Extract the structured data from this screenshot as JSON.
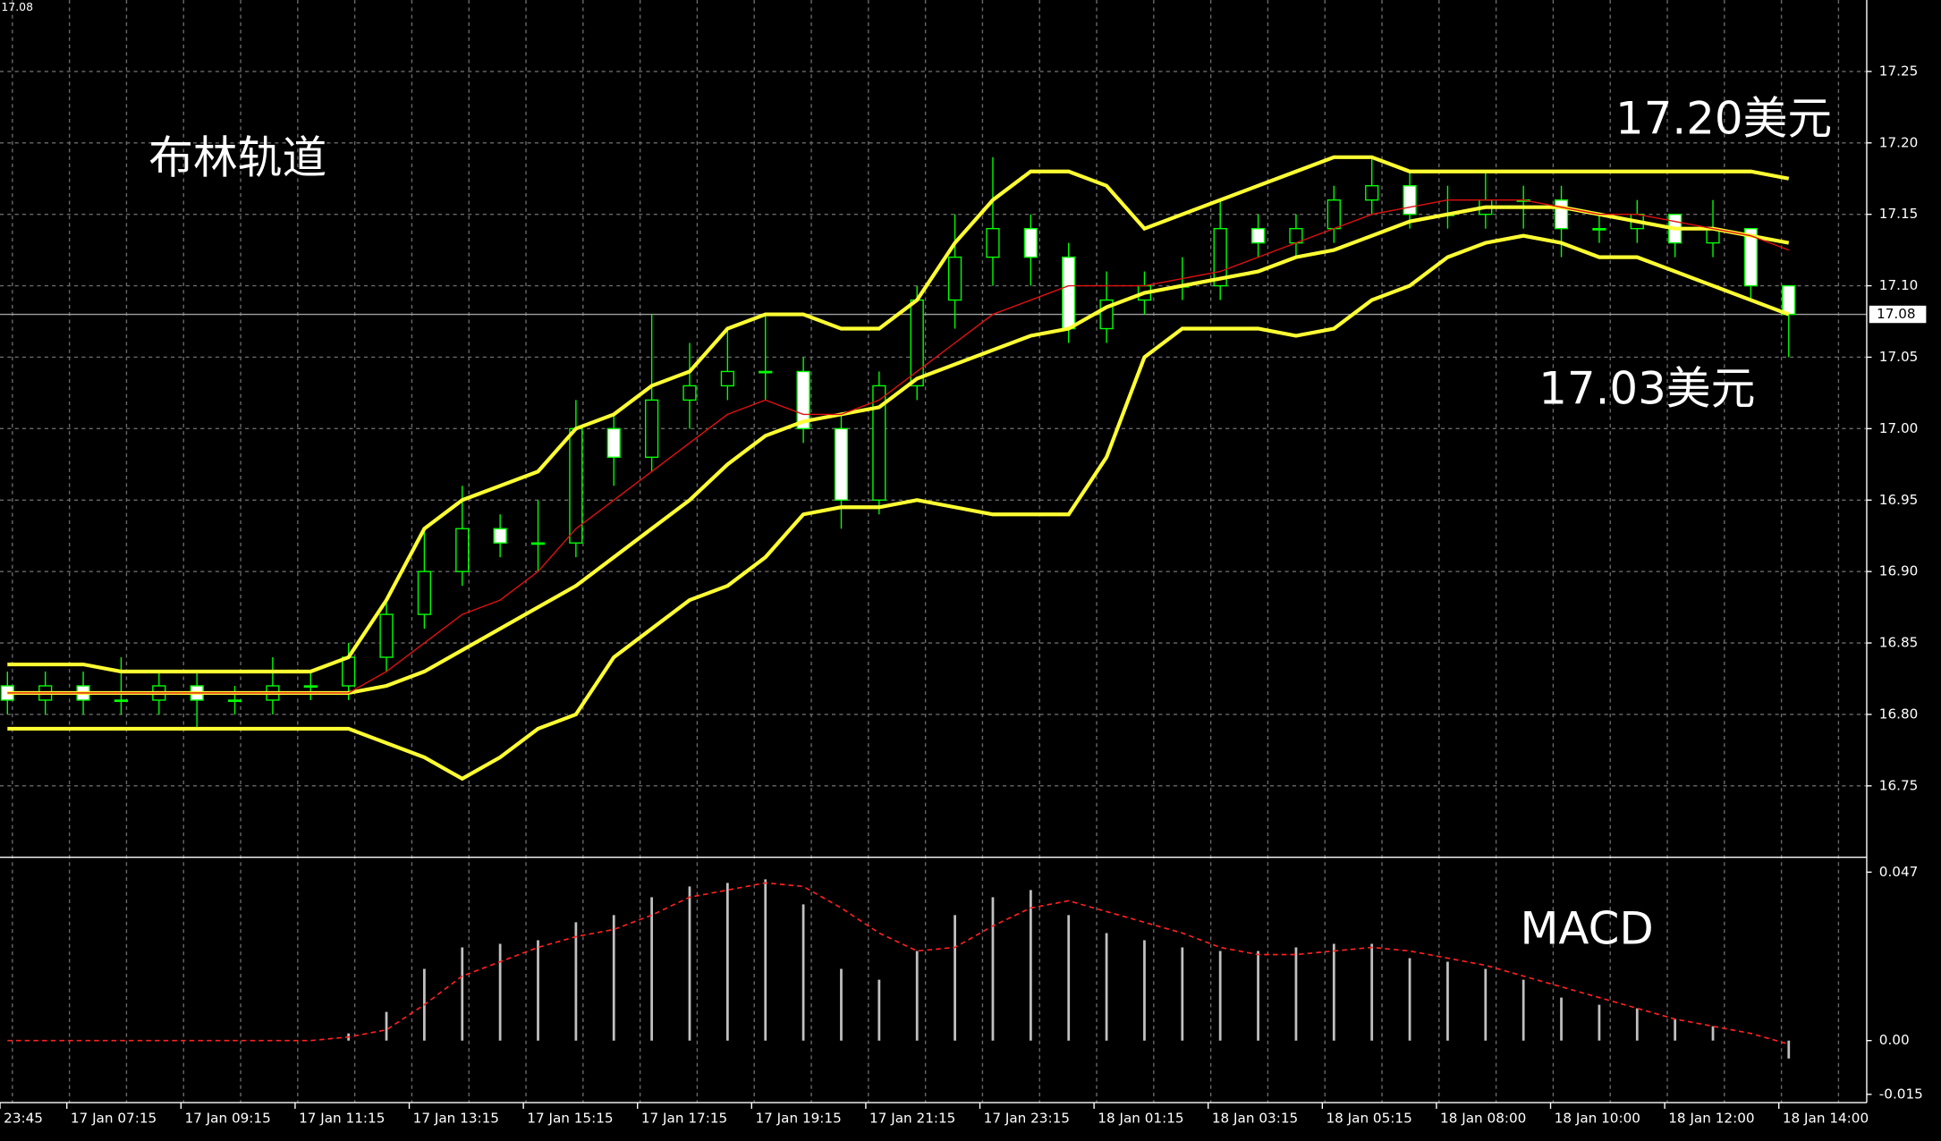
{
  "chart_data": {
    "type": "candlestick",
    "corner_price": "17.08",
    "current_price": {
      "value": 17.08,
      "label": "17.08"
    },
    "annotations": [
      "布林轨道",
      "17.20美元",
      "17.03美元",
      "MACD"
    ],
    "ylim": [
      16.7,
      17.3
    ],
    "yticks": [
      16.75,
      {
        "value": 16.8,
        "label": "16.80"
      },
      16.85,
      {
        "value": 16.9,
        "label": "16.90"
      },
      16.95,
      {
        "value": 17.0,
        "label": "17.00"
      },
      17.05,
      {
        "value": 17.1,
        "label": "17.10"
      },
      17.15,
      {
        "value": 17.2,
        "label": "17.20"
      },
      17.25
    ],
    "grid": true,
    "x_labels": [
      "23:45",
      "17 Jan 07:15",
      "17 Jan 09:15",
      "17 Jan 11:15",
      "17 Jan 13:15",
      "17 Jan 15:15",
      "17 Jan 17:15",
      "17 Jan 19:15",
      "17 Jan 21:15",
      "17 Jan 23:15",
      "18 Jan 01:15",
      "18 Jan 03:15",
      "18 Jan 05:15",
      "18 Jan 08:00",
      "18 Jan 10:00",
      "18 Jan 12:00",
      "18 Jan 14:00"
    ],
    "candle_color": "#00ff00",
    "candles": [
      [
        16.82,
        16.83,
        16.8,
        16.81
      ],
      [
        16.81,
        16.83,
        16.8,
        16.82
      ],
      [
        16.82,
        16.83,
        16.8,
        16.81
      ],
      [
        16.81,
        16.84,
        16.8,
        16.81
      ],
      [
        16.81,
        16.83,
        16.8,
        16.82
      ],
      [
        16.82,
        16.83,
        16.79,
        16.81
      ],
      [
        16.81,
        16.82,
        16.8,
        16.81
      ],
      [
        16.81,
        16.84,
        16.8,
        16.82
      ],
      [
        16.82,
        16.83,
        16.81,
        16.82
      ],
      [
        16.82,
        16.85,
        16.81,
        16.84
      ],
      [
        16.84,
        16.88,
        16.83,
        16.87
      ],
      [
        16.87,
        16.93,
        16.86,
        16.9
      ],
      [
        16.9,
        16.96,
        16.89,
        16.93
      ],
      [
        16.93,
        16.94,
        16.91,
        16.92
      ],
      [
        16.92,
        16.95,
        16.9,
        16.92
      ],
      [
        16.92,
        17.02,
        16.91,
        17.0
      ],
      [
        17.0,
        17.01,
        16.96,
        16.98
      ],
      [
        16.98,
        17.08,
        16.97,
        17.02
      ],
      [
        17.02,
        17.06,
        17.0,
        17.03
      ],
      [
        17.03,
        17.07,
        17.02,
        17.04
      ],
      [
        17.04,
        17.08,
        17.02,
        17.04
      ],
      [
        17.04,
        17.05,
        16.99,
        17.0
      ],
      [
        17.0,
        17.01,
        16.93,
        16.95
      ],
      [
        16.95,
        17.04,
        16.94,
        17.03
      ],
      [
        17.03,
        17.1,
        17.02,
        17.09
      ],
      [
        17.09,
        17.15,
        17.07,
        17.12
      ],
      [
        17.12,
        17.19,
        17.1,
        17.14
      ],
      [
        17.14,
        17.15,
        17.1,
        17.12
      ],
      [
        17.12,
        17.13,
        17.06,
        17.07
      ],
      [
        17.07,
        17.11,
        17.06,
        17.09
      ],
      [
        17.09,
        17.11,
        17.08,
        17.1
      ],
      [
        17.1,
        17.12,
        17.09,
        17.1
      ],
      [
        17.1,
        17.16,
        17.09,
        17.14
      ],
      [
        17.14,
        17.15,
        17.12,
        17.13
      ],
      [
        17.13,
        17.15,
        17.12,
        17.14
      ],
      [
        17.14,
        17.17,
        17.13,
        17.16
      ],
      [
        17.16,
        17.19,
        17.15,
        17.17
      ],
      [
        17.17,
        17.18,
        17.14,
        17.15
      ],
      [
        17.15,
        17.17,
        17.14,
        17.15
      ],
      [
        17.15,
        17.18,
        17.14,
        17.16
      ],
      [
        17.16,
        17.17,
        17.14,
        17.16
      ],
      [
        17.16,
        17.17,
        17.12,
        17.14
      ],
      [
        17.14,
        17.15,
        17.13,
        17.14
      ],
      [
        17.14,
        17.16,
        17.13,
        17.15
      ],
      [
        17.15,
        17.15,
        17.12,
        17.13
      ],
      [
        17.13,
        17.16,
        17.12,
        17.14
      ],
      [
        17.14,
        17.14,
        17.09,
        17.1
      ],
      [
        17.1,
        17.1,
        17.05,
        17.08
      ]
    ],
    "bands": [
      {
        "color": "#ffff33",
        "values": [
          16.835,
          16.835,
          16.835,
          16.83,
          16.83,
          16.83,
          16.83,
          16.83,
          16.83,
          16.84,
          16.88,
          16.93,
          16.95,
          16.96,
          16.97,
          17.0,
          17.01,
          17.03,
          17.04,
          17.07,
          17.08,
          17.08,
          17.07,
          17.07,
          17.09,
          17.13,
          17.16,
          17.18,
          17.18,
          17.17,
          17.14,
          17.15,
          17.16,
          17.17,
          17.18,
          17.19,
          17.19,
          17.18,
          17.18,
          17.18,
          17.18,
          17.18,
          17.18,
          17.18,
          17.18,
          17.18,
          17.18,
          17.175
        ]
      },
      {
        "color": "#ffff33",
        "values": [
          16.815,
          16.815,
          16.815,
          16.815,
          16.815,
          16.815,
          16.815,
          16.815,
          16.815,
          16.815,
          16.82,
          16.83,
          16.845,
          16.86,
          16.875,
          16.89,
          16.91,
          16.93,
          16.95,
          16.975,
          16.995,
          17.005,
          17.01,
          17.015,
          17.035,
          17.045,
          17.055,
          17.065,
          17.07,
          17.085,
          17.095,
          17.1,
          17.105,
          17.11,
          17.12,
          17.125,
          17.135,
          17.145,
          17.15,
          17.155,
          17.155,
          17.155,
          17.15,
          17.145,
          17.14,
          17.14,
          17.135,
          17.13
        ]
      },
      {
        "color": "#ffff33",
        "values": [
          16.79,
          16.79,
          16.79,
          16.79,
          16.79,
          16.79,
          16.79,
          16.79,
          16.79,
          16.79,
          16.78,
          16.77,
          16.755,
          16.77,
          16.79,
          16.8,
          16.84,
          16.86,
          16.88,
          16.89,
          16.91,
          16.94,
          16.945,
          16.945,
          16.95,
          16.945,
          16.94,
          16.94,
          16.94,
          16.98,
          17.05,
          17.07,
          17.07,
          17.07,
          17.065,
          17.07,
          17.09,
          17.1,
          17.12,
          17.13,
          17.135,
          17.13,
          17.12,
          17.12,
          17.11,
          17.1,
          17.09,
          17.08
        ]
      },
      {
        "color": "#e01010",
        "values": [
          16.815,
          16.815,
          16.815,
          16.815,
          16.815,
          16.815,
          16.815,
          16.815,
          16.815,
          16.815,
          16.83,
          16.85,
          16.87,
          16.88,
          16.9,
          16.93,
          16.95,
          16.97,
          16.99,
          17.01,
          17.02,
          17.01,
          17.01,
          17.02,
          17.04,
          17.06,
          17.08,
          17.09,
          17.1,
          17.1,
          17.1,
          17.105,
          17.11,
          17.12,
          17.13,
          17.14,
          17.15,
          17.155,
          17.16,
          17.16,
          17.16,
          17.155,
          17.15,
          17.15,
          17.145,
          17.14,
          17.135,
          17.125
        ]
      }
    ],
    "y2lim": [
      -0.0173,
      0.0501
    ],
    "y2ticks": [
      {
        "value": 0.047,
        "label": "0.047"
      },
      {
        "value": 0,
        "label": "0.00"
      },
      {
        "value": -0.015,
        "label": "-0.015"
      }
    ],
    "macd_hist": {
      "color": "#c0c0c0",
      "values": [
        0,
        0,
        0,
        0,
        0,
        0,
        0,
        0,
        0,
        0.002,
        0.008,
        0.02,
        0.026,
        0.027,
        0.028,
        0.033,
        0.035,
        0.04,
        0.043,
        0.044,
        0.045,
        0.038,
        0.02,
        0.017,
        0.025,
        0.035,
        0.04,
        0.042,
        0.035,
        0.03,
        0.028,
        0.026,
        0.025,
        0.025,
        0.026,
        0.027,
        0.027,
        0.023,
        0.022,
        0.02,
        0.017,
        0.012,
        0.01,
        0.009,
        0.006,
        0.004,
        0,
        -0.005
      ]
    },
    "macd_signal": {
      "color": "#ff2020",
      "values": [
        0,
        0,
        0,
        0,
        0,
        0,
        0,
        0,
        0,
        0.001,
        0.003,
        0.01,
        0.018,
        0.022,
        0.026,
        0.029,
        0.031,
        0.035,
        0.04,
        0.042,
        0.044,
        0.043,
        0.037,
        0.03,
        0.025,
        0.026,
        0.032,
        0.037,
        0.039,
        0.036,
        0.033,
        0.03,
        0.026,
        0.024,
        0.024,
        0.025,
        0.026,
        0.025,
        0.023,
        0.021,
        0.018,
        0.015,
        0.012,
        0.009,
        0.006,
        0.004,
        0.002,
        -0.001
      ]
    }
  }
}
